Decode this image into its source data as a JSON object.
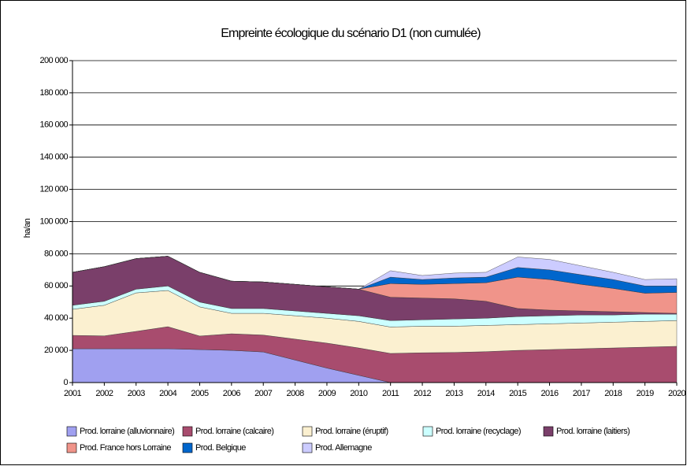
{
  "chart_data": {
    "type": "stacked_area",
    "title": "Empreinte écologique du scénario D1 (non cumulée)",
    "y_label": "ha/an",
    "categories": [
      "2001",
      "2002",
      "2003",
      "2004",
      "2005",
      "2006",
      "2007",
      "2008",
      "2009",
      "2010",
      "2011",
      "2012",
      "2013",
      "2014",
      "2015",
      "2016",
      "2017",
      "2018",
      "2019",
      "2020"
    ],
    "ylim": [
      0,
      200000
    ],
    "yticks": [
      0,
      {
        "value": 20000,
        "label": "20 000"
      },
      {
        "value": 40000,
        "label": "40 000"
      },
      {
        "value": 60000,
        "label": "60 000"
      },
      {
        "value": 80000,
        "label": "80 000"
      },
      {
        "value": 100000,
        "label": "100 000"
      },
      {
        "value": 120000,
        "label": "120 000"
      },
      {
        "value": 140000,
        "label": "140 000"
      },
      {
        "value": 160000,
        "label": "160 000"
      },
      {
        "value": 180000,
        "label": "180 000"
      },
      {
        "value": 200000,
        "label": "200 000"
      }
    ],
    "grid": true,
    "series": [
      {
        "name": "Prod. lorraine (alluvionnaire)",
        "color": "#a0a0f0",
        "values": [
          21000,
          21000,
          21000,
          21000,
          20500,
          20000,
          19000,
          14000,
          9000,
          4500,
          0,
          0,
          0,
          0,
          0,
          0,
          0,
          0,
          0,
          0
        ]
      },
      {
        "name": "Prod. lorraine (calcaire)",
        "color": "#a84c6e",
        "values": [
          8300,
          8000,
          10800,
          13700,
          8400,
          10300,
          10500,
          13000,
          15500,
          17000,
          18100,
          18500,
          18700,
          19200,
          20000,
          20500,
          21000,
          21500,
          22000,
          22500
        ]
      },
      {
        "name": "Prod. lorraine (éruptif)",
        "color": "#fbf0d0",
        "values": [
          16200,
          19000,
          23900,
          22500,
          18100,
          12700,
          13500,
          14500,
          15500,
          16500,
          16400,
          16500,
          16300,
          16300,
          16000,
          16000,
          16000,
          16000,
          16000,
          16000
        ]
      },
      {
        "name": "Prod. lorraine (recyclage)",
        "color": "#ccffff",
        "values": [
          2500,
          2500,
          2300,
          2800,
          3000,
          3000,
          3000,
          3000,
          3000,
          3500,
          4000,
          4000,
          4500,
          4500,
          5000,
          5000,
          5000,
          4500,
          4500,
          4000
        ]
      },
      {
        "name": "Prod. lorraine (laitiers)",
        "color": "#7a3f6a",
        "values": [
          20500,
          21500,
          19000,
          18500,
          18500,
          17000,
          16500,
          16500,
          16500,
          16500,
          14500,
          13500,
          12500,
          10500,
          5000,
          3500,
          2500,
          2000,
          1000,
          500
        ]
      },
      {
        "name": "Prod. France hors Lorraine",
        "color": "#f0948a",
        "values": [
          0,
          0,
          0,
          0,
          0,
          0,
          0,
          0,
          0,
          0,
          8500,
          8500,
          9500,
          11500,
          19500,
          19000,
          16500,
          14500,
          12000,
          13000
        ]
      },
      {
        "name": "Prod. Belgique",
        "color": "#0066cc",
        "values": [
          0,
          0,
          0,
          0,
          0,
          0,
          0,
          0,
          0,
          0,
          4000,
          3000,
          3500,
          3500,
          6000,
          6000,
          6000,
          5500,
          4500,
          4000
        ]
      },
      {
        "name": "Prod. Allemagne",
        "color": "#ccccff",
        "values": [
          0,
          0,
          0,
          0,
          0,
          0,
          0,
          0,
          0,
          0,
          4000,
          2500,
          3000,
          3000,
          6500,
          6500,
          5500,
          4500,
          4000,
          4500
        ]
      }
    ]
  }
}
